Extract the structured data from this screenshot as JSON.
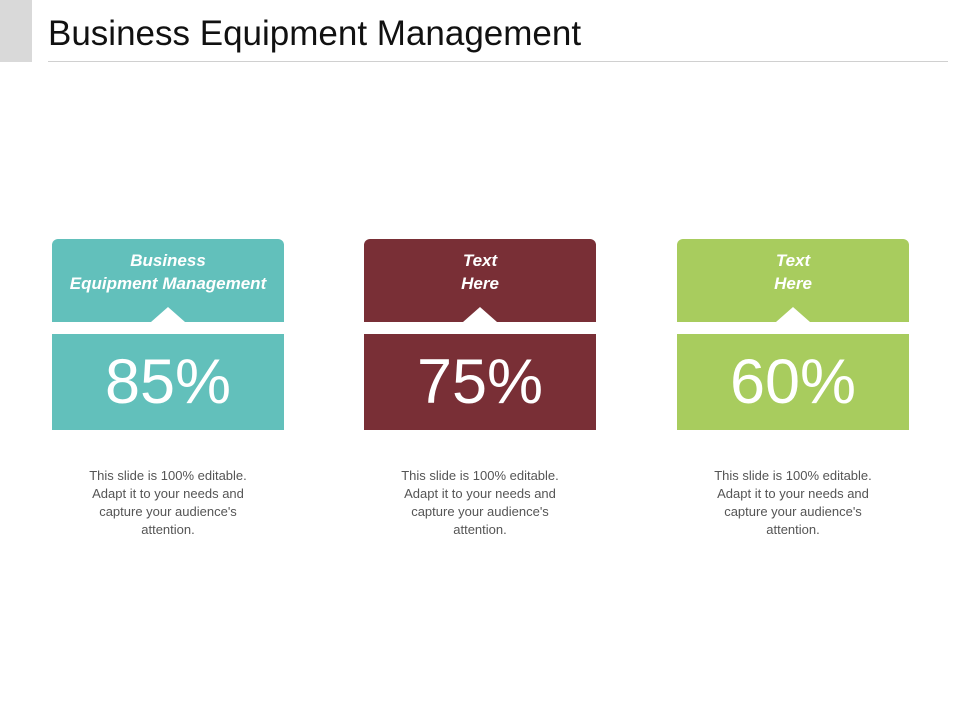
{
  "slide": {
    "title": "Business Equipment Management"
  },
  "cards": [
    {
      "header": "Business\nEquipment Management",
      "value": "85%",
      "description": "This slide is 100% editable. Adapt it to your needs and capture your audience's attention.",
      "color": "#62c0bb"
    },
    {
      "header": "Text\nHere",
      "value": "75%",
      "description": "This slide is 100% editable. Adapt it to your needs and capture your audience's attention.",
      "color": "#792f36"
    },
    {
      "header": "Text\nHere",
      "value": "60%",
      "description": "This slide is 100% editable. Adapt it to your needs and capture your audience's attention.",
      "color": "#a8cc5e"
    }
  ]
}
